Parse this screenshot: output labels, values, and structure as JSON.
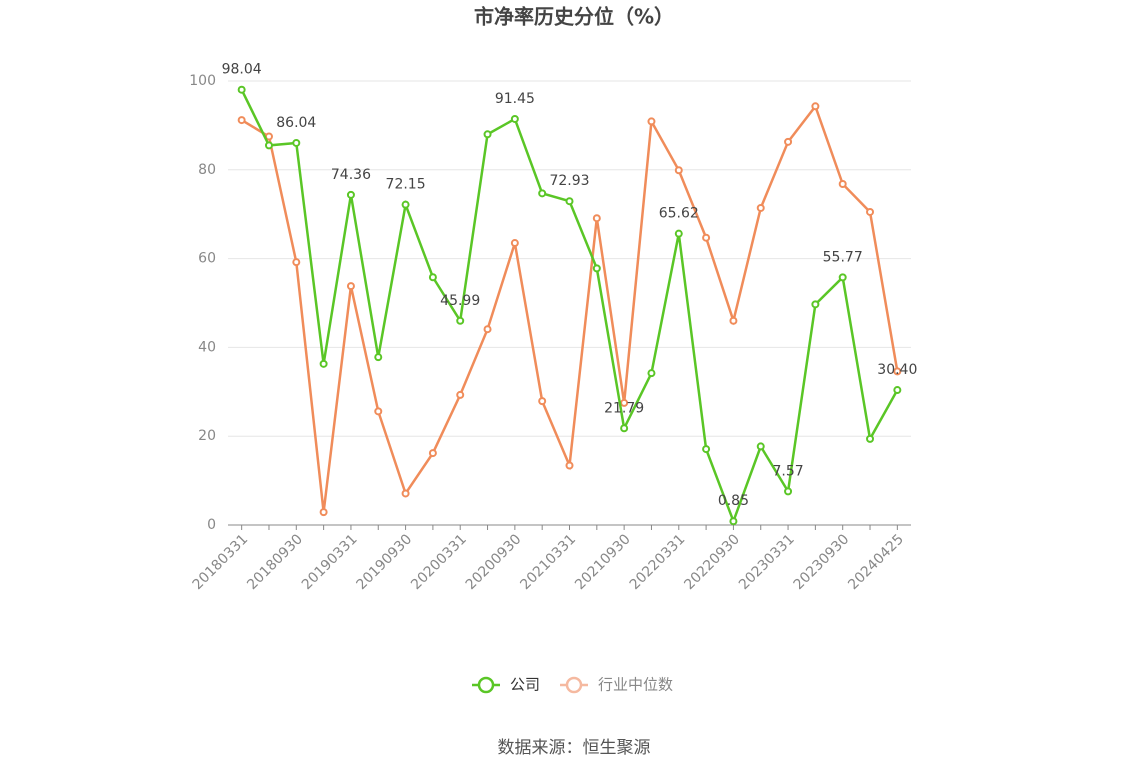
{
  "chart_data": {
    "type": "line",
    "title": "市净率历史分位（%）",
    "source": "数据来源：恒生聚源",
    "categories": [
      "20180331",
      null,
      "20180930",
      null,
      "20190331",
      null,
      "20190930",
      null,
      "20200331",
      null,
      "20200930",
      null,
      "20210331",
      null,
      "20210930",
      null,
      "20220331",
      null,
      "20220930",
      null,
      "20230331",
      null,
      "20230930",
      null,
      "20240425"
    ],
    "series": [
      {
        "name": "公司",
        "color": "#5ac626",
        "values": [
          98.04,
          85.5,
          86.04,
          36.3,
          74.36,
          37.8,
          72.15,
          55.8,
          45.99,
          88.0,
          91.45,
          74.7,
          72.93,
          57.8,
          21.79,
          34.2,
          65.62,
          17.1,
          0.85,
          17.7,
          7.57,
          49.7,
          55.77,
          19.4,
          30.4
        ],
        "value_labels": [
          "98.04",
          null,
          "86.04",
          null,
          "74.36",
          null,
          "72.15",
          null,
          "45.99",
          null,
          "91.45",
          null,
          "72.93",
          null,
          "21.79",
          null,
          "65.62",
          null,
          "0.85",
          null,
          "7.57",
          null,
          "55.77",
          null,
          "30.40"
        ]
      },
      {
        "name": "行业中位数",
        "color": "#f08c5a",
        "values": [
          91.2,
          87.5,
          59.2,
          2.9,
          53.8,
          25.6,
          7.1,
          16.2,
          29.3,
          44.1,
          63.5,
          27.9,
          13.4,
          69.1,
          27.5,
          90.9,
          79.9,
          64.7,
          46.0,
          71.4,
          86.3,
          94.3,
          76.8,
          70.5,
          34.6
        ]
      }
    ],
    "ylim": [
      0,
      100
    ],
    "yticks": [
      0,
      20,
      40,
      60,
      80,
      100
    ],
    "grid": true
  }
}
